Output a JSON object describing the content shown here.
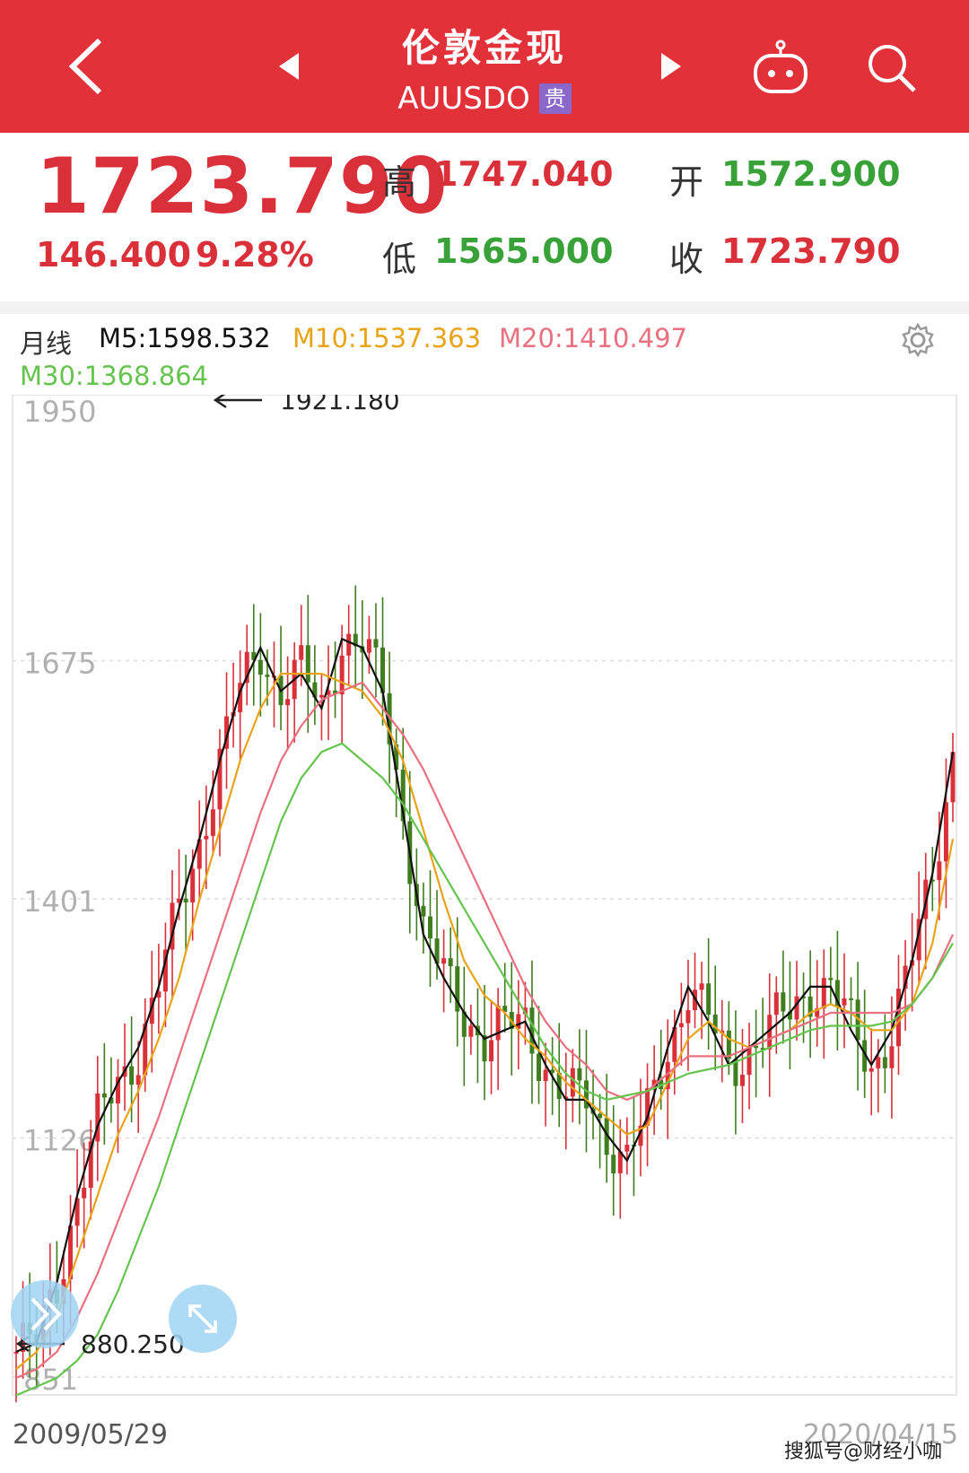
{
  "header": {
    "title": "伦敦金现",
    "symbol": "AUUSDO",
    "badge": "贵"
  },
  "quote": {
    "price": "1723.790",
    "change": "146.400",
    "change_pct": "9.28%",
    "high_label": "高",
    "high": "1747.040",
    "open_label": "开",
    "open": "1572.900",
    "low_label": "低",
    "low": "1565.000",
    "close_label": "收",
    "close": "1723.790"
  },
  "indicators": {
    "period": "月线",
    "m5": "M5:1598.532",
    "m10": "M10:1537.363",
    "m20": "M20:1410.497",
    "m30": "M30:1368.864"
  },
  "colors": {
    "up": "#d9303a",
    "down": "#3f7d1e",
    "m5": "#111111",
    "m10": "#e8a317",
    "m20": "#e9707f",
    "m30": "#64c44e",
    "header": "#e3313a"
  },
  "chart_data": {
    "type": "candlestick",
    "period": "monthly",
    "x_start": "2009/05/29",
    "x_end": "2020/04/15",
    "y_ticks": [
      1950,
      1675,
      1401,
      1126,
      851
    ],
    "ylim": [
      851,
      1950
    ],
    "annotation_high": "1921.180",
    "annotation_low": "880.250",
    "grid": true,
    "series": [
      {
        "name": "M5",
        "values": [
          880,
          890,
          960,
          1060,
          1140,
          1190,
          1230,
          1300,
          1390,
          1470,
          1560,
          1640,
          1690,
          1640,
          1660,
          1620,
          1700,
          1690,
          1640,
          1500,
          1360,
          1310,
          1270,
          1240,
          1250,
          1260,
          1210,
          1170,
          1170,
          1130,
          1100,
          1150,
          1230,
          1300,
          1260,
          1210,
          1230,
          1250,
          1270,
          1300,
          1300,
          1250,
          1210,
          1250,
          1330,
          1430,
          1570
        ]
      },
      {
        "name": "M10",
        "values": [
          860,
          880,
          920,
          990,
          1060,
          1130,
          1180,
          1240,
          1310,
          1400,
          1480,
          1560,
          1620,
          1660,
          1660,
          1660,
          1650,
          1640,
          1610,
          1560,
          1480,
          1400,
          1330,
          1290,
          1270,
          1240,
          1220,
          1190,
          1170,
          1150,
          1130,
          1140,
          1190,
          1240,
          1260,
          1240,
          1230,
          1240,
          1250,
          1270,
          1280,
          1270,
          1250,
          1250,
          1280,
          1350,
          1470
        ]
      },
      {
        "name": "M20",
        "values": [
          850,
          860,
          880,
          920,
          970,
          1030,
          1090,
          1150,
          1220,
          1290,
          1360,
          1430,
          1500,
          1560,
          1600,
          1630,
          1640,
          1650,
          1620,
          1590,
          1550,
          1500,
          1450,
          1400,
          1350,
          1300,
          1260,
          1230,
          1210,
          1180,
          1170,
          1180,
          1200,
          1220,
          1220,
          1220,
          1230,
          1240,
          1250,
          1260,
          1270,
          1270,
          1270,
          1270,
          1280,
          1310,
          1360
        ]
      },
      {
        "name": "M30",
        "values": [
          830,
          840,
          850,
          870,
          900,
          950,
          1010,
          1070,
          1140,
          1210,
          1280,
          1350,
          1420,
          1490,
          1540,
          1570,
          1580,
          1560,
          1540,
          1510,
          1470,
          1430,
          1390,
          1350,
          1310,
          1270,
          1230,
          1200,
          1180,
          1170,
          1175,
          1180,
          1190,
          1200,
          1205,
          1210,
          1220,
          1230,
          1240,
          1250,
          1255,
          1255,
          1255,
          1260,
          1280,
          1310,
          1350
        ]
      }
    ]
  },
  "footer": {
    "start_date": "2009/05/29",
    "end_date": "2020/04/15",
    "watermark": "搜狐号@财经小咖"
  }
}
